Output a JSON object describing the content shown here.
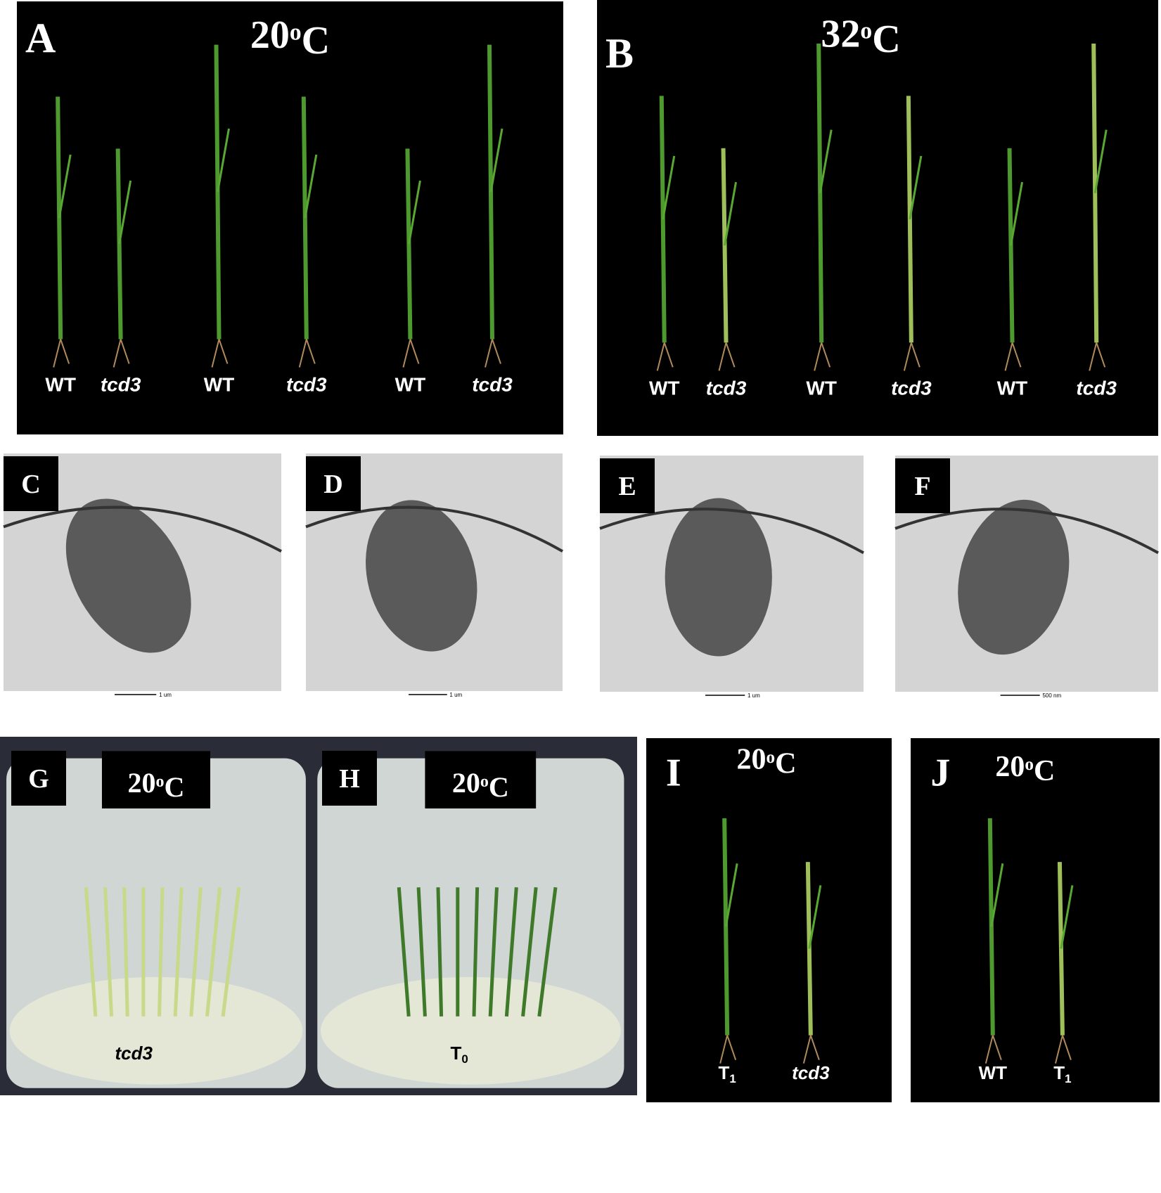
{
  "panels": [
    {
      "letter": "A",
      "title": [
        "20",
        "o",
        "C"
      ],
      "labels": [
        [
          "WT"
        ],
        [
          "tcd3"
        ],
        [
          "WT"
        ],
        [
          "tcd3"
        ],
        [
          "WT"
        ],
        [
          "tcd3"
        ]
      ]
    },
    {
      "letter": "B",
      "title": [
        "32",
        "o",
        "C"
      ],
      "labels": [
        [
          "WT"
        ],
        [
          "tcd3"
        ],
        [
          "WT"
        ],
        [
          "tcd3"
        ],
        [
          "WT"
        ],
        [
          "tcd3"
        ]
      ]
    },
    {
      "letter": "C",
      "scale": "1 um"
    },
    {
      "letter": "D",
      "scale": "1 um"
    },
    {
      "letter": "E",
      "scale": "1 um"
    },
    {
      "letter": "F",
      "scale": "500 nm"
    },
    {
      "letter": "G",
      "title": [
        "20",
        "o",
        "C"
      ],
      "labels": [
        [
          "tcd3"
        ]
      ]
    },
    {
      "letter": "H",
      "title": [
        "20",
        "o",
        "C"
      ],
      "labels": [
        [
          "T",
          "0"
        ]
      ]
    },
    {
      "letter": "I",
      "title": [
        "20",
        "o",
        "C"
      ],
      "labels": [
        [
          "T",
          "1"
        ],
        [
          "tcd3"
        ]
      ]
    },
    {
      "letter": "J",
      "title": [
        "20",
        "o",
        "C"
      ],
      "labels": [
        [
          "WT"
        ],
        [
          "T",
          "1"
        ]
      ]
    }
  ]
}
